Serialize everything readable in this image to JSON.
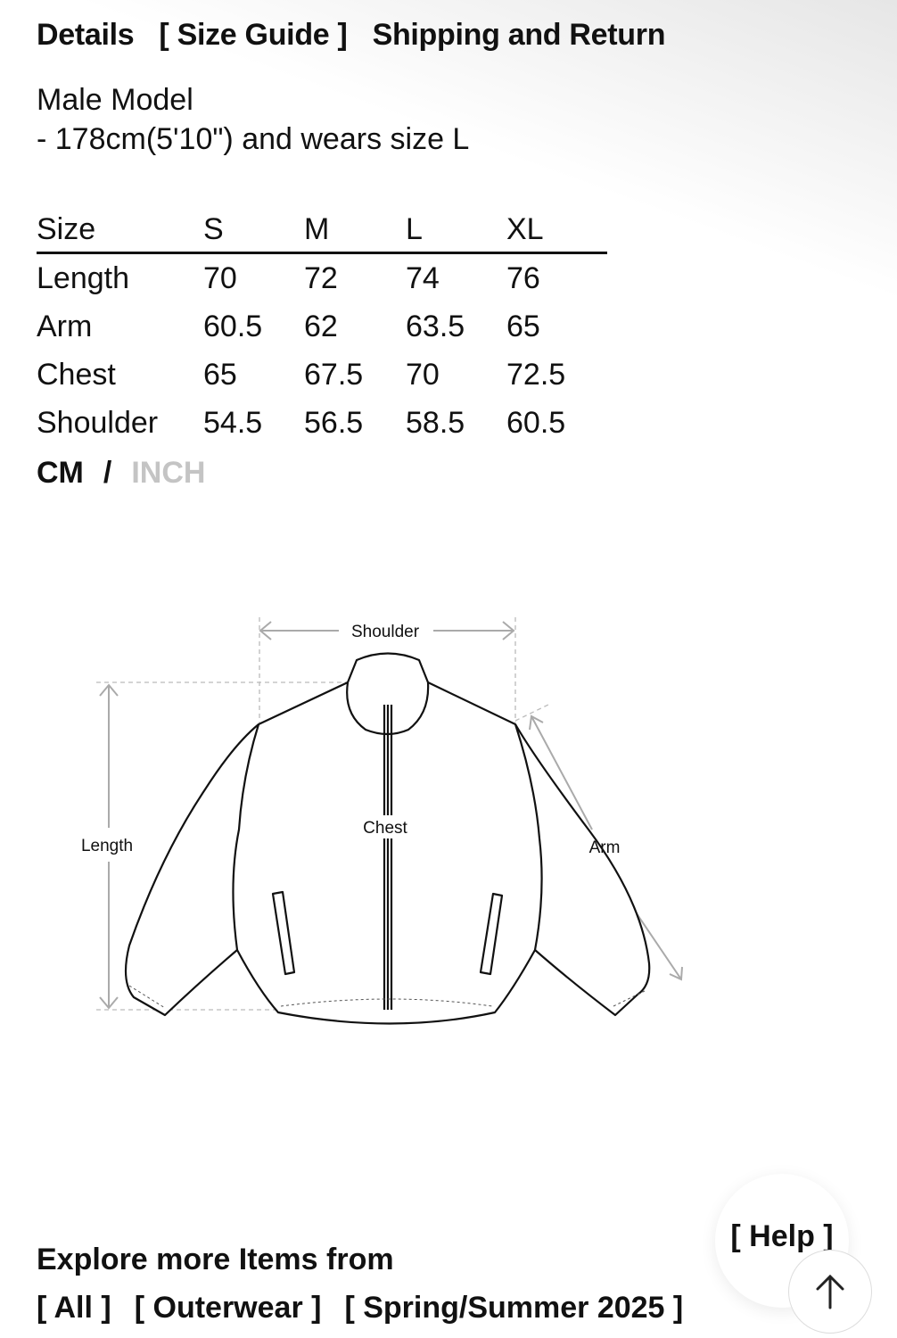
{
  "tabs": [
    "Details",
    "[ Size Guide ]",
    "Shipping and Return"
  ],
  "model": {
    "title": "Male Model",
    "desc": "- 178cm(5'10\") and wears size L"
  },
  "size_table": {
    "headers": [
      "Size",
      "S",
      "M",
      "L",
      "XL"
    ],
    "rows": [
      [
        "Length",
        "70",
        "72",
        "74",
        "76"
      ],
      [
        "Arm",
        "60.5",
        "62",
        "63.5",
        "65"
      ],
      [
        "Chest",
        "65",
        "67.5",
        "70",
        "72.5"
      ],
      [
        "Shoulder",
        "54.5",
        "56.5",
        "58.5",
        "60.5"
      ]
    ]
  },
  "units": {
    "cm": "CM",
    "sep": "/",
    "inch": "INCH",
    "active": "CM"
  },
  "diagram": {
    "shoulder": "Shoulder",
    "chest": "Chest",
    "length": "Length",
    "arm": "Arm"
  },
  "explore": {
    "title": "Explore more Items from",
    "links": [
      "[ All ]",
      "[ Outerwear ]",
      "[ Spring/Summer 2025 ]"
    ]
  },
  "help": "[ Help ]"
}
